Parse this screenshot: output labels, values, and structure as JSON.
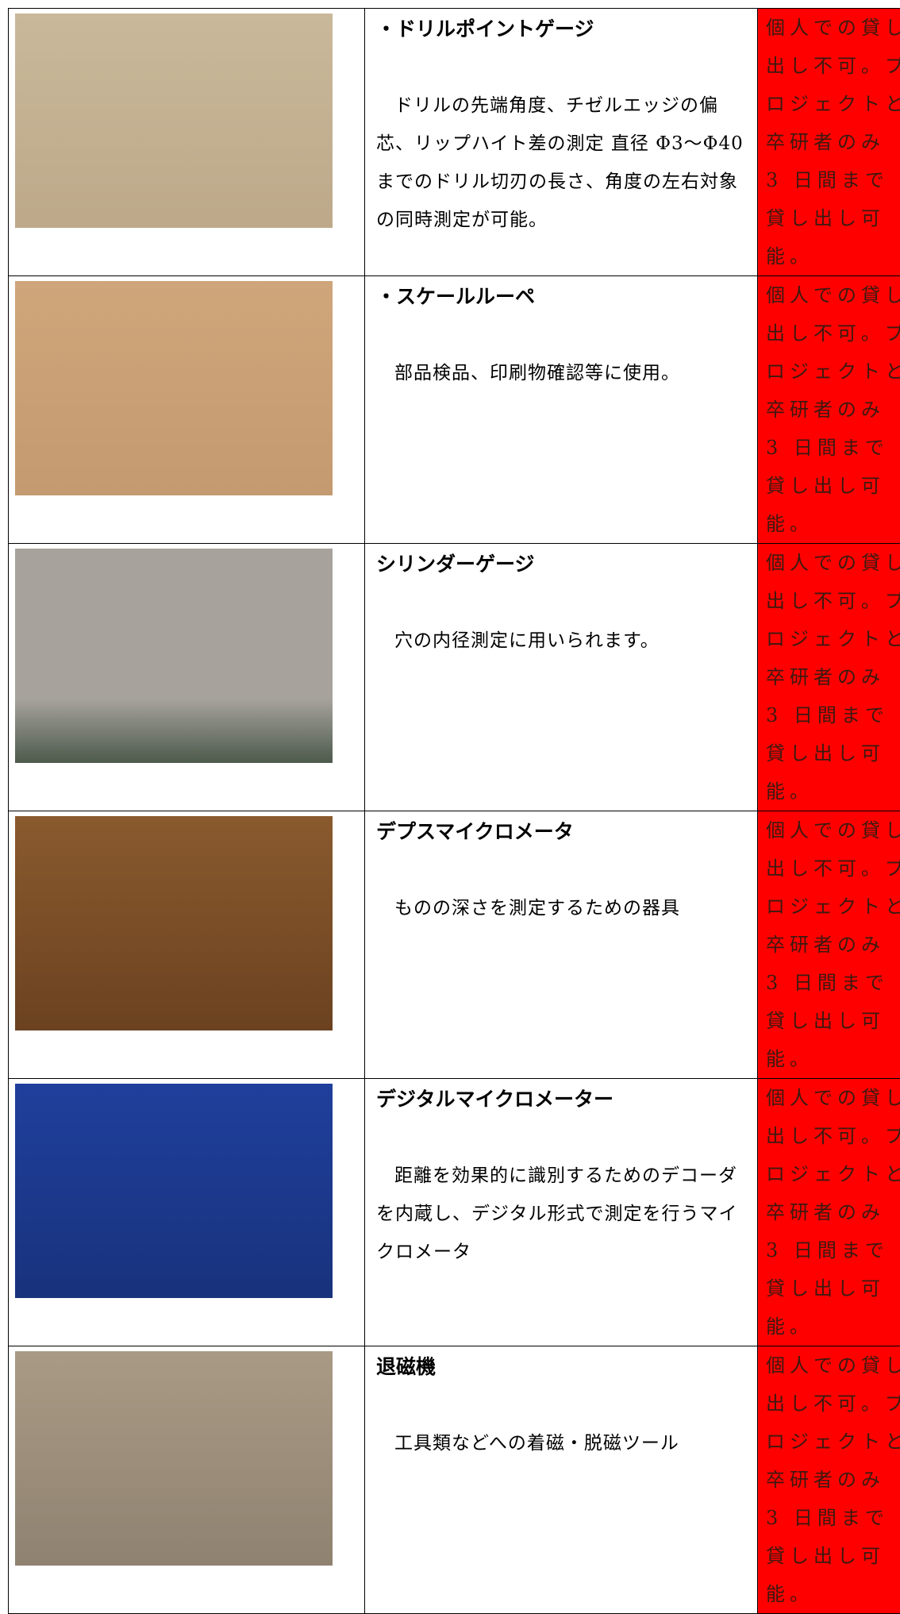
{
  "table": {
    "rows": [
      {
        "title": "・ドリルポイントゲージ",
        "description": "ドリルの先端角度、チゼルエッジの偏芯、リップハイト差の測定 直径 Φ3～Φ40 までのドリル切刃の長さ、角度の左右対象の同時測定が可能。",
        "note": "個人での貸し出し不可。プロジェクトと卒研者のみ 3 日間まで貸し出し可能。"
      },
      {
        "title": "・スケールルーペ",
        "description": "部品検品、印刷物確認等に使用。",
        "note": "個人での貸し出し不可。プロジェクトと卒研者のみ 3 日間まで貸し出し可能。"
      },
      {
        "title": "シリンダーゲージ",
        "description": "穴の内径測定に用いられます。",
        "note": "個人での貸し出し不可。プロジェクトと卒研者のみ 3 日間まで貸し出し可能。"
      },
      {
        "title": "デプスマイクロメータ",
        "description": "ものの深さを測定するための器具",
        "note": "個人での貸し出し不可。プロジェクトと卒研者のみ 3 日間まで貸し出し可能。"
      },
      {
        "title": "デジタルマイクロメーター",
        "description": "距離を効果的に識別するためのデコーダを内蔵し、デジタル形式で測定を行うマイクロメータ",
        "note": "個人での貸し出し不可。プロジェクトと卒研者のみ 3 日間まで貸し出し可能。"
      },
      {
        "title": "退磁機",
        "description": "工具類などへの着磁・脱磁ツール",
        "note": "個人での貸し出し不可。プロジェクトと卒研者のみ 3 日間まで貸し出し可能。"
      }
    ]
  }
}
